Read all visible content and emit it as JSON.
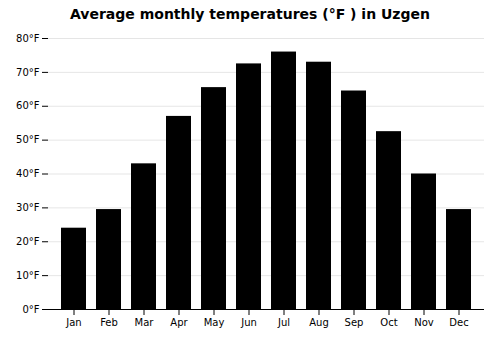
{
  "chart_data": {
    "type": "bar",
    "title": "Average monthly temperatures (°F ) in Uzgen",
    "categories": [
      "Jan",
      "Feb",
      "Mar",
      "Apr",
      "May",
      "Jun",
      "Jul",
      "Aug",
      "Sep",
      "Oct",
      "Nov",
      "Dec"
    ],
    "values": [
      24,
      29.5,
      43,
      57,
      65.5,
      72.5,
      76,
      73,
      64.5,
      52.5,
      40,
      29.5
    ],
    "ylim": [
      0,
      80
    ],
    "yticks": [
      {
        "value": 0,
        "label": "0°F"
      },
      {
        "value": 10,
        "label": "10°F"
      },
      {
        "value": 20,
        "label": "20°F"
      },
      {
        "value": 30,
        "label": "30°F"
      },
      {
        "value": 40,
        "label": "40°F"
      },
      {
        "value": 50,
        "label": "50°F"
      },
      {
        "value": 60,
        "label": "60°F"
      },
      {
        "value": 70,
        "label": "70°F"
      },
      {
        "value": 80,
        "label": "80°F"
      }
    ],
    "grid": true
  }
}
